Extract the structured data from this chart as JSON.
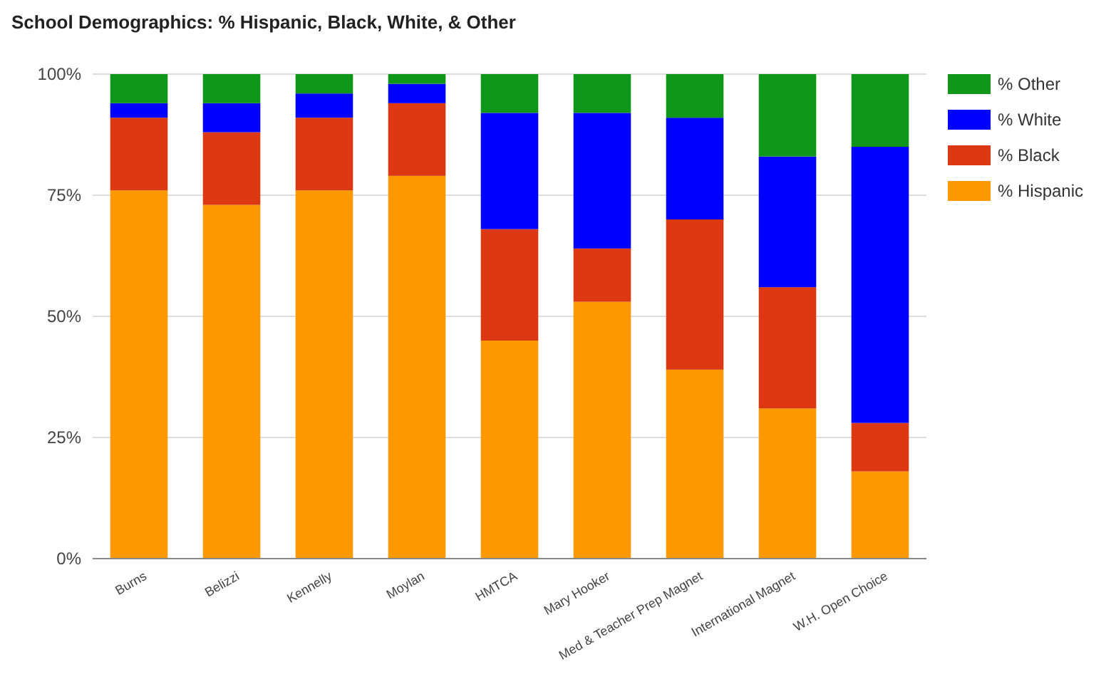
{
  "chart_data": {
    "type": "bar",
    "title": "School Demographics: % Hispanic, Black, White, & Other",
    "categories": [
      "Burns",
      "Belizzi",
      "Kennelly",
      "Moylan",
      "HMTCA",
      "Mary Hooker",
      "Med & Teacher Prep Magnet",
      "International Magnet",
      "W.H. Open Choice"
    ],
    "series": [
      {
        "name": "% Hispanic",
        "color": "#ff9900",
        "values": [
          76,
          73,
          76,
          79,
          45,
          53,
          39,
          31,
          18
        ]
      },
      {
        "name": "% Black",
        "color": "#dc3912",
        "values": [
          15,
          15,
          15,
          15,
          23,
          11,
          31,
          25,
          10
        ]
      },
      {
        "name": "% White",
        "color": "#0000ff",
        "values": [
          3,
          6,
          5,
          4,
          24,
          28,
          21,
          27,
          57
        ]
      },
      {
        "name": "% Other",
        "color": "#109618",
        "values": [
          6,
          6,
          4,
          2,
          8,
          8,
          9,
          17,
          15
        ]
      }
    ],
    "stacked": true,
    "ylim": [
      0,
      100
    ],
    "yticks": [
      {
        "value": 0,
        "label": "0%"
      },
      {
        "value": 25,
        "label": "25%"
      },
      {
        "value": 50,
        "label": "50%"
      },
      {
        "value": 75,
        "label": "75%"
      },
      {
        "value": 100,
        "label": "100%"
      }
    ],
    "grid": "y",
    "legend": "top right"
  }
}
